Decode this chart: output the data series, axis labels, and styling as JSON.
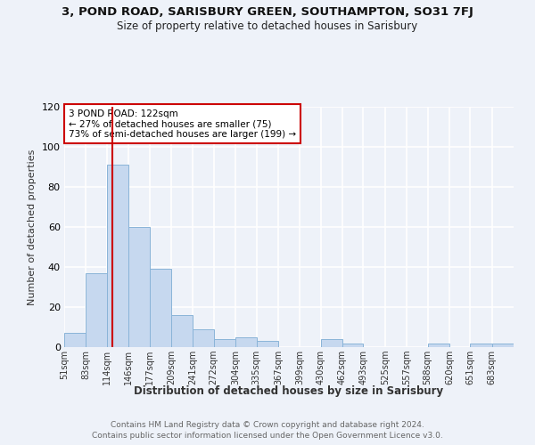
{
  "title": "3, POND ROAD, SARISBURY GREEN, SOUTHAMPTON, SO31 7FJ",
  "subtitle": "Size of property relative to detached houses in Sarisbury",
  "xlabel": "Distribution of detached houses by size in Sarisbury",
  "ylabel": "Number of detached properties",
  "footnote1": "Contains HM Land Registry data © Crown copyright and database right 2024.",
  "footnote2": "Contains public sector information licensed under the Open Government Licence v3.0.",
  "annotation_title": "3 POND ROAD: 122sqm",
  "annotation_line1": "← 27% of detached houses are smaller (75)",
  "annotation_line2": "73% of semi-detached houses are larger (199) →",
  "bar_edges": [
    51,
    83,
    114,
    146,
    177,
    209,
    241,
    272,
    304,
    335,
    367,
    399,
    430,
    462,
    493,
    525,
    557,
    588,
    620,
    651,
    683,
    715
  ],
  "bar_values": [
    7,
    37,
    91,
    60,
    39,
    16,
    9,
    4,
    5,
    3,
    0,
    0,
    4,
    2,
    0,
    0,
    0,
    2,
    0,
    2,
    2
  ],
  "bar_color": "#c6d8ef",
  "bar_edge_color": "#8ab4d8",
  "property_value": 122,
  "vline_color": "#cc0000",
  "annotation_box_color": "#cc0000",
  "ylim": [
    0,
    120
  ],
  "tick_labels": [
    "51sqm",
    "83sqm",
    "114sqm",
    "146sqm",
    "177sqm",
    "209sqm",
    "241sqm",
    "272sqm",
    "304sqm",
    "335sqm",
    "367sqm",
    "399sqm",
    "430sqm",
    "462sqm",
    "493sqm",
    "525sqm",
    "557sqm",
    "588sqm",
    "620sqm",
    "651sqm",
    "683sqm"
  ],
  "background_color": "#eef2f9",
  "plot_bg_color": "#eef2f9",
  "grid_color": "#ffffff"
}
